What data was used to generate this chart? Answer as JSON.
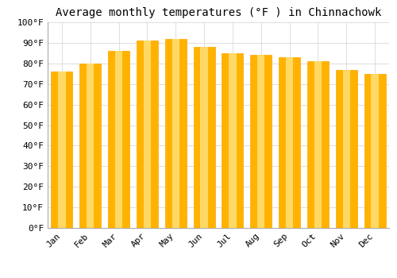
{
  "title": "Average monthly temperatures (°F ) in Chinnachowk",
  "months": [
    "Jan",
    "Feb",
    "Mar",
    "Apr",
    "May",
    "Jun",
    "Jul",
    "Aug",
    "Sep",
    "Oct",
    "Nov",
    "Dec"
  ],
  "values": [
    76,
    80,
    86,
    91,
    92,
    88,
    85,
    84,
    83,
    81,
    77,
    75
  ],
  "bar_color_main": "#FFB300",
  "bar_color_light": "#FFD966",
  "bar_edge_color": "#FFA500",
  "background_color": "#FFFFFF",
  "ylim": [
    0,
    100
  ],
  "yticks": [
    0,
    10,
    20,
    30,
    40,
    50,
    60,
    70,
    80,
    90,
    100
  ],
  "grid_color": "#dddddd",
  "title_fontsize": 10,
  "tick_fontsize": 8,
  "font_family": "monospace"
}
